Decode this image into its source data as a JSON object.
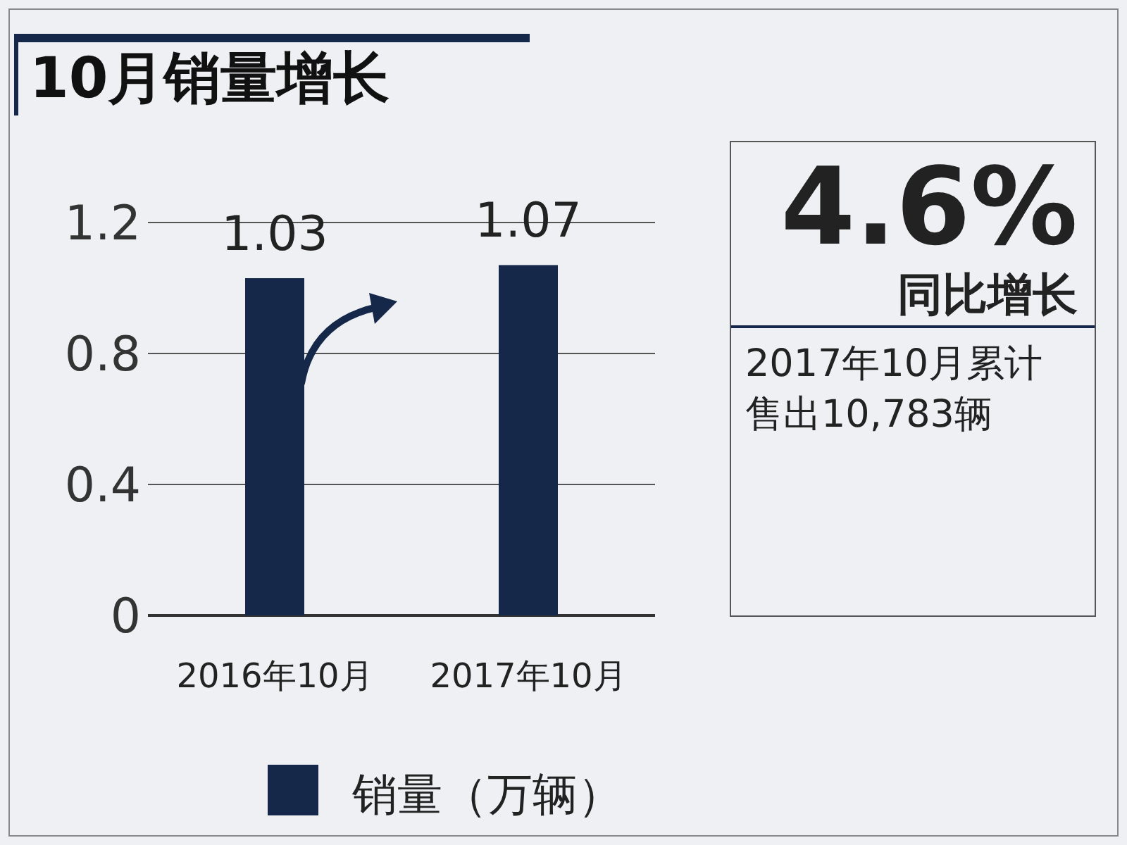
{
  "chart_data": {
    "type": "bar",
    "title": "10月销量增长",
    "categories": [
      "2016年10月",
      "2017年10月"
    ],
    "series": [
      {
        "name": "销量（万辆）",
        "color": "#15284a",
        "values": [
          1.03,
          1.07
        ]
      }
    ],
    "ylim": [
      0,
      1.2
    ],
    "yticks": [
      0,
      0.4,
      0.8,
      1.2
    ],
    "grid": "y",
    "data_labels": true,
    "legend": "bottom",
    "annotations": [
      "4.6%",
      "同比增长",
      "2017年10月累计售出10,783辆"
    ]
  }
}
